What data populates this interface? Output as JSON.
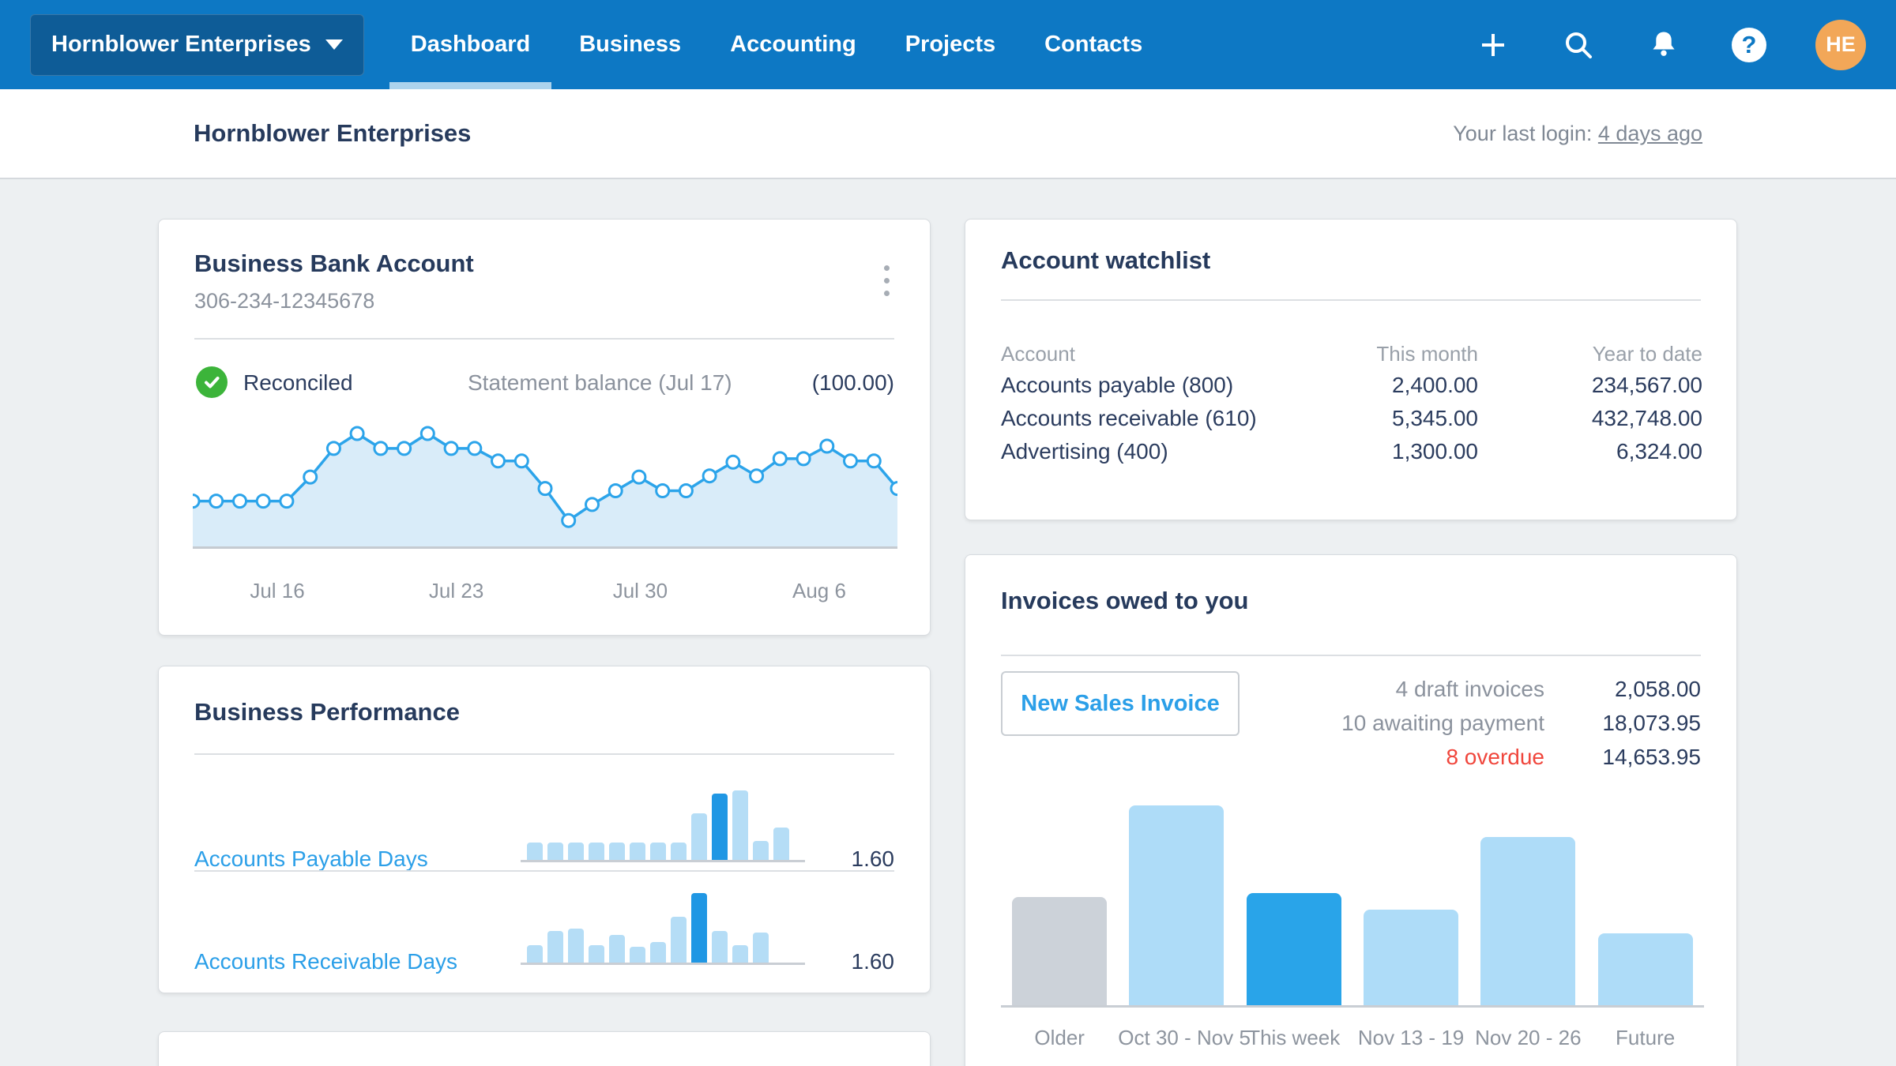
{
  "colors": {
    "nav_blue": "#0d78c4",
    "accent_blue": "#2b9fe8",
    "line_blue": "#2ca4ea",
    "area_fill": "#d9ecf9",
    "bar_light": "#aedcf8",
    "bar_bright": "#29a4e9",
    "bar_gray": "#ccd2d9",
    "spark_light": "#b5ddf6",
    "spark_dark": "#2097e4",
    "green": "#3cb43a",
    "red": "#f0463c",
    "navy": "#263a5c"
  },
  "nav": {
    "org_button": {
      "label": "Hornblower Enterprises"
    },
    "items": [
      {
        "label": "Dashboard",
        "active": true
      },
      {
        "label": "Business",
        "active": false
      },
      {
        "label": "Accounting",
        "active": false
      },
      {
        "label": "Projects",
        "active": false
      },
      {
        "label": "Contacts",
        "active": false
      }
    ],
    "avatar_initials": "HE"
  },
  "header": {
    "title": "Hornblower Enterprises",
    "last_login_prefix": "Your last login: ",
    "last_login_link": "4 days ago"
  },
  "bank_card": {
    "title": "Business Bank Account",
    "account_number": "306-234-12345678",
    "reconciled_label": "Reconciled",
    "statement_label": "Statement balance (Jul 17)",
    "statement_value": "(100.00)"
  },
  "watchlist": {
    "title": "Account watchlist",
    "columns": [
      "Account",
      "This month",
      "Year to date"
    ],
    "rows": [
      {
        "account": "Accounts payable (800)",
        "this_month": "2,400.00",
        "year_to_date": "234,567.00"
      },
      {
        "account": "Accounts receivable (610)",
        "this_month": "5,345.00",
        "year_to_date": "432,748.00"
      },
      {
        "account": "Advertising (400)",
        "this_month": "1,300.00",
        "year_to_date": "6,324.00"
      }
    ]
  },
  "performance": {
    "title": "Business Performance",
    "rows": [
      {
        "label": "Accounts Payable Days",
        "value": "1.60"
      },
      {
        "label": "Accounts Receivable Days",
        "value": "1.60"
      }
    ]
  },
  "invoices": {
    "title": "Invoices owed to you",
    "button_label": "New Sales Invoice",
    "stats": [
      {
        "label": "4 draft invoices",
        "value": "2,058.00",
        "overdue": false
      },
      {
        "label": "10 awaiting payment",
        "value": "18,073.95",
        "overdue": false
      },
      {
        "label": "8 overdue",
        "value": "14,653.95",
        "overdue": true
      }
    ]
  },
  "chart_data": [
    {
      "name": "bank_balance_trend",
      "type": "area",
      "title": "Business Bank Account balance (relative, no y-axis shown)",
      "x": "days Jul 13 - Aug 9",
      "values": [
        41,
        41,
        41,
        41,
        41,
        62,
        87,
        100,
        87,
        87,
        100,
        87,
        87,
        76,
        76,
        52,
        24,
        38,
        50,
        62,
        50,
        50,
        63,
        75,
        63,
        78,
        78,
        89,
        76,
        76,
        52
      ],
      "ylim": [
        0,
        100
      ],
      "grid": false,
      "x_tick_labels": [
        "Jul 16",
        "Jul 23",
        "Jul 30",
        "Aug 6"
      ],
      "x_tick_positions": [
        0.12,
        0.374,
        0.635,
        0.889
      ]
    },
    {
      "name": "performance_sparklines",
      "type": "bar",
      "title": "Business Performance mini charts (relative, no axes shown)",
      "series": [
        {
          "name": "Accounts Payable Days",
          "values": [
            25,
            25,
            25,
            25,
            25,
            25,
            25,
            25,
            67,
            95,
            100,
            27,
            47
          ],
          "highlight_index": 9
        },
        {
          "name": "Accounts Receivable Days",
          "values": [
            25,
            45,
            49,
            25,
            40,
            23,
            29,
            66,
            100,
            45,
            25,
            43
          ],
          "highlight_index": 8
        }
      ],
      "ylim": [
        0,
        100
      ]
    },
    {
      "name": "invoices_owed_by_week",
      "type": "bar",
      "title": "Invoices owed to you by due week (relative, no y-axis shown)",
      "categories": [
        "Older",
        "Oct 30 - Nov 5",
        "This week",
        "Nov 13 - 19",
        "Nov 20 - 26",
        "Future"
      ],
      "values": [
        54,
        100,
        56,
        48,
        84,
        36
      ],
      "bar_styles": [
        "gray",
        "light",
        "bright",
        "light",
        "light",
        "light"
      ],
      "ylim": [
        0,
        100
      ],
      "grid": false
    }
  ]
}
